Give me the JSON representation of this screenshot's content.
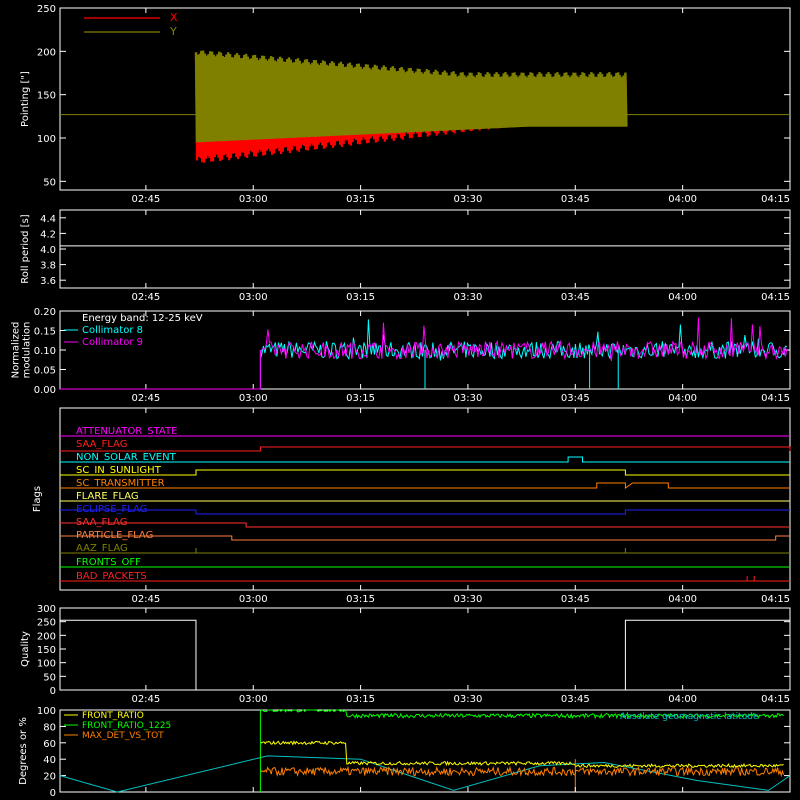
{
  "chart_data": [
    {
      "panel": "pointing",
      "type": "line",
      "ylabel": "Pointing [\"]",
      "ylim": [
        40,
        250
      ],
      "yticks": [
        50,
        100,
        150,
        200,
        250
      ],
      "baseline": 127,
      "series": [
        {
          "name": "X",
          "color": "#ff0000",
          "t_start": "02:52",
          "t_end": "03:52",
          "start_min": 70,
          "start_max": 200,
          "end_min": 115,
          "end_max": 172
        },
        {
          "name": "Y",
          "color": "#808000",
          "t_start": "02:52",
          "t_end": "03:52",
          "start_min": 95,
          "start_max": 202,
          "end_min": 113,
          "end_max": 176
        }
      ]
    },
    {
      "panel": "roll",
      "type": "line",
      "ylabel": "Roll period [s]",
      "ylim": [
        3.5,
        4.5
      ],
      "yticks": [
        "3.6",
        "3.8",
        "4.0",
        "4.2",
        "4.4"
      ],
      "series": [
        {
          "name": "Roll period",
          "color": "#ffffff",
          "value": 4.04
        }
      ]
    },
    {
      "panel": "modulation",
      "type": "line",
      "ylabel": [
        "Normalized",
        "modulation"
      ],
      "ylim": [
        0,
        0.2
      ],
      "yticks": [
        "0.00",
        "0.05",
        "0.10",
        "0.15",
        "0.20"
      ],
      "legend_title": "Energy band: 12-25 keV",
      "series": [
        {
          "name": "Collimator 8",
          "color": "#00ffff",
          "t_start": "03:01",
          "t_end": "04:15",
          "mean": 0.1
        },
        {
          "name": "Collimator 9",
          "color": "#ff00ff",
          "t_start": "03:01",
          "t_end": "04:15",
          "mean": 0.1
        }
      ]
    },
    {
      "panel": "flags",
      "type": "step",
      "ylabel": "Flags",
      "flags": [
        {
          "name": "ATTENUATOR_STATE",
          "color": "#ff00ff"
        },
        {
          "name": "SAA_FLAG",
          "color": "#ff2020"
        },
        {
          "name": "NON_SOLAR_EVENT",
          "color": "#00ffff"
        },
        {
          "name": "SC_IN_SUNLIGHT",
          "color": "#ffff00"
        },
        {
          "name": "SC_TRANSMITTER",
          "color": "#ff8000"
        },
        {
          "name": "FLARE_FLAG",
          "color": "#ffff60"
        },
        {
          "name": "ECLIPSE_FLAG",
          "color": "#2020ff"
        },
        {
          "name": "SAA_FLAG",
          "color": "#ff3030"
        },
        {
          "name": "PARTICLE_FLAG",
          "color": "#ff8040"
        },
        {
          "name": "AAZ_FLAG",
          "color": "#808000"
        },
        {
          "name": "FRONTS_OFF",
          "color": "#00ff00"
        },
        {
          "name": "BAD_PACKETS",
          "color": "#ff2020"
        }
      ]
    },
    {
      "panel": "quality",
      "type": "step",
      "ylabel": "Quality",
      "ylim": [
        0,
        300
      ],
      "yticks": [
        0,
        50,
        100,
        150,
        200,
        250,
        300
      ],
      "series": [
        {
          "name": "Quality",
          "color": "#ffffff",
          "high": 255
        }
      ]
    },
    {
      "panel": "ratios",
      "type": "line",
      "ylabel": "Degrees or %",
      "ylim": [
        0,
        100
      ],
      "yticks": [
        0,
        20,
        40,
        60,
        80,
        100
      ],
      "annotation": "Absolute geomagnetic latitude",
      "series": [
        {
          "name": "FRONT_RATIO",
          "color": "#ffff00"
        },
        {
          "name": "FRONT_RATIO_1225",
          "color": "#00ff00"
        },
        {
          "name": "MAX_DET_VS_TOT",
          "color": "#ff8000"
        },
        {
          "name": "Absolute geomagnetic latitude",
          "color": "#00c0c0"
        }
      ]
    }
  ],
  "x_axis": {
    "range": [
      "02:33",
      "04:15"
    ],
    "ticks": [
      "02:45",
      "03:00",
      "03:15",
      "03:30",
      "03:45",
      "04:00",
      "04:15"
    ]
  }
}
